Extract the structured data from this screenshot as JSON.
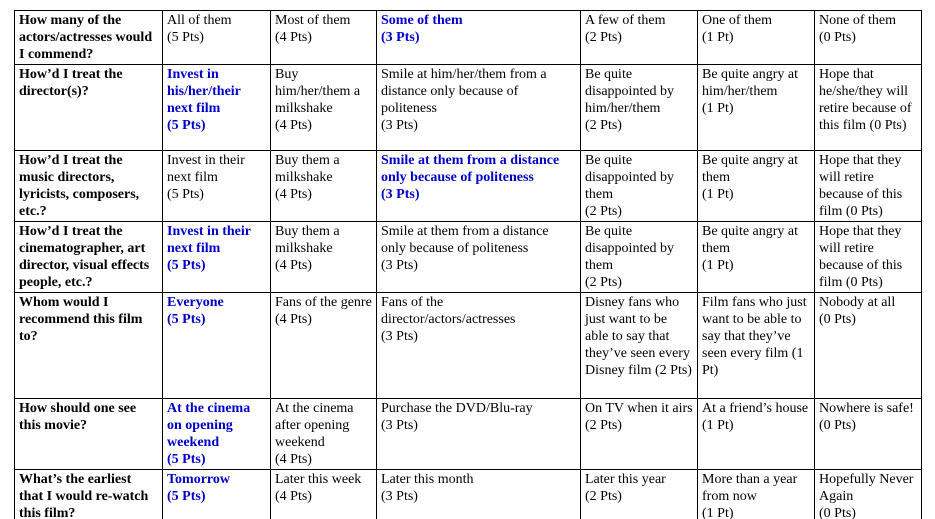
{
  "page": {
    "background": "#ffffff",
    "text_color": "#000000",
    "selected_color": "#0000cc",
    "border_color": "#000000"
  },
  "table": {
    "description": "film-rating-rubric",
    "rows": [
      {
        "question": "How many of the actors/actresses would I commend?",
        "options": [
          {
            "text": "All of them\n(5 Pts)",
            "selected": false
          },
          {
            "text": "Most of them\n(4 Pts)",
            "selected": false
          },
          {
            "text": "Some of them\n(3 Pts)",
            "selected": true
          },
          {
            "text": "A few of them\n(2 Pts)",
            "selected": false
          },
          {
            "text": "One of them\n(1 Pt)",
            "selected": false
          },
          {
            "text": "None of them\n(0 Pts)",
            "selected": false
          }
        ]
      },
      {
        "question": "How’d I treat the director(s)?",
        "options": [
          {
            "text": "Invest in his/her/their next film\n(5 Pts)",
            "selected": true
          },
          {
            "text": "Buy him/her/them a milkshake\n(4 Pts)",
            "selected": false
          },
          {
            "text": "Smile at him/her/them from a distance only because of politeness\n(3 Pts)",
            "selected": false
          },
          {
            "text": "Be quite disappointed by him/her/them\n(2 Pts)",
            "selected": false
          },
          {
            "text": "Be quite angry at him/her/them\n(1 Pt)",
            "selected": false
          },
          {
            "text": "Hope that he/she/they will retire because of this film (0 Pts)",
            "selected": false
          }
        ]
      },
      {
        "question": "How’d I treat the music directors, lyricists, composers, etc.?",
        "options": [
          {
            "text": "Invest in their next film\n(5 Pts)",
            "selected": false
          },
          {
            "text": "Buy them a milkshake\n(4 Pts)",
            "selected": false
          },
          {
            "text": "Smile at them from a distance only because of politeness\n(3 Pts)",
            "selected": true
          },
          {
            "text": "Be quite disappointed by them\n(2 Pts)",
            "selected": false
          },
          {
            "text": "Be quite angry at them\n(1 Pt)",
            "selected": false
          },
          {
            "text": "Hope that they will retire because of this film (0 Pts)",
            "selected": false
          }
        ]
      },
      {
        "question": "How’d I treat the cinematographer, art director, visual effects people, etc.?",
        "options": [
          {
            "text": "Invest in their next film\n(5 Pts)",
            "selected": true
          },
          {
            "text": "Buy them a milkshake\n(4 Pts)",
            "selected": false
          },
          {
            "text": "Smile at them from a distance only because of politeness\n(3 Pts)",
            "selected": false
          },
          {
            "text": "Be quite disappointed by them\n(2 Pts)",
            "selected": false
          },
          {
            "text": "Be quite angry at them\n(1 Pt)",
            "selected": false
          },
          {
            "text": "Hope that they will retire because of this film (0 Pts)",
            "selected": false
          }
        ]
      },
      {
        "question": "Whom would I recommend this film to?",
        "options": [
          {
            "text": "Everyone\n(5 Pts)",
            "selected": true
          },
          {
            "text": "Fans of the genre\n(4 Pts)",
            "selected": false
          },
          {
            "text": "Fans of the director/actors/actresses\n(3 Pts)",
            "selected": false
          },
          {
            "text": "Disney fans who just want to be able to say that they’ve seen every Disney film (2 Pts)",
            "selected": false
          },
          {
            "text": "Film fans who just want to be able to say that they’ve seen every film (1 Pt)",
            "selected": false
          },
          {
            "text": "Nobody at all\n(0 Pts)",
            "selected": false
          }
        ]
      },
      {
        "question": "How should one see this movie?",
        "options": [
          {
            "text": "At the cinema on opening weekend\n(5 Pts)",
            "selected": true
          },
          {
            "text": "At the cinema after opening weekend\n(4 Pts)",
            "selected": false
          },
          {
            "text": "Purchase the DVD/Blu-ray\n(3 Pts)",
            "selected": false
          },
          {
            "text": "On TV when it airs\n(2 Pts)",
            "selected": false
          },
          {
            "text": "At a friend’s house\n(1 Pt)",
            "selected": false
          },
          {
            "text": "Nowhere is safe! (0 Pts)",
            "selected": false
          }
        ]
      },
      {
        "question": "What’s the earliest that I would re-watch this film?",
        "options": [
          {
            "text": "Tomorrow\n(5 Pts)",
            "selected": true
          },
          {
            "text": "Later this week\n(4 Pts)",
            "selected": false
          },
          {
            "text": "Later this month\n(3 Pts)",
            "selected": false
          },
          {
            "text": "Later this year\n(2 Pts)",
            "selected": false
          },
          {
            "text": "More than a year from now\n(1 Pt)",
            "selected": false
          },
          {
            "text": "Hopefully Never Again\n(0 Pts)",
            "selected": false
          }
        ]
      }
    ]
  }
}
